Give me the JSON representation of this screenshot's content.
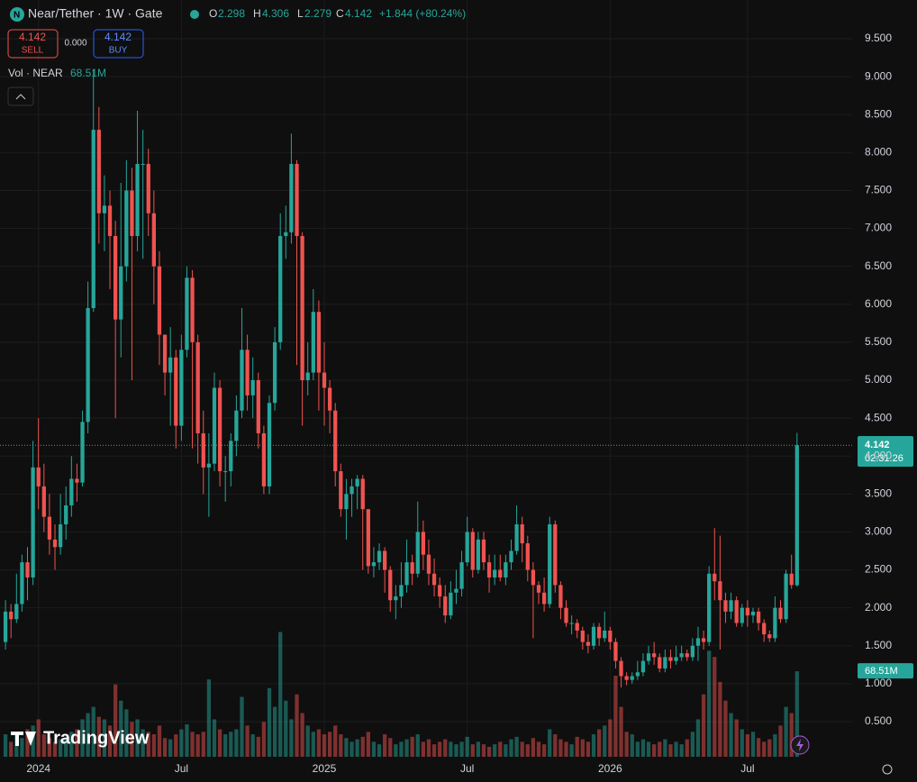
{
  "chart_data": {
    "type": "candlestick",
    "header": {
      "symbol": "Near/Tether · 1W · Gate",
      "o": "O",
      "h": "H",
      "l": "L",
      "c": "C",
      "change": "+1.844 (+80.24%)",
      "sell": "SELL",
      "buy": "BUY",
      "spread": "0.000",
      "vol_title": "Vol · NEAR",
      "volume_label": "68.51M",
      "countdown": "02:31:26",
      "brand": "TradingView"
    },
    "up_color": "#26a69a",
    "down_color": "#ef5350",
    "xlim": [
      -1,
      146
    ],
    "xticks": [
      {
        "value": 6,
        "label": "2024"
      },
      {
        "value": 32,
        "label": "Jul"
      },
      {
        "value": 58,
        "label": "2025"
      },
      {
        "value": 84,
        "label": "Jul"
      },
      {
        "value": 110,
        "label": "2026"
      },
      {
        "value": 135,
        "label": "Jul"
      }
    ],
    "ylim": [
      0.3,
      9.8
    ],
    "yticks": [
      {
        "value": 0.5,
        "label": "0.500"
      },
      {
        "value": 1,
        "label": "1.000"
      },
      {
        "value": 1.5,
        "label": "1.500"
      },
      {
        "value": 2,
        "label": "2.000"
      },
      {
        "value": 2.5,
        "label": "2.500"
      },
      {
        "value": 3,
        "label": "3.000"
      },
      {
        "value": 3.5,
        "label": "3.500"
      },
      {
        "value": 4,
        "label": "4.000"
      },
      {
        "value": 4.5,
        "label": "4.500"
      },
      {
        "value": 5,
        "label": "5.000"
      },
      {
        "value": 5.5,
        "label": "5.500"
      },
      {
        "value": 6,
        "label": "6.000"
      },
      {
        "value": 6.5,
        "label": "6.500"
      },
      {
        "value": 7,
        "label": "7.000"
      },
      {
        "value": 7.5,
        "label": "7.500"
      },
      {
        "value": 8,
        "label": "8.000"
      },
      {
        "value": 8.5,
        "label": "8.500"
      },
      {
        "value": 9,
        "label": "9.000"
      },
      {
        "value": 9.5,
        "label": "9.500"
      }
    ],
    "grid": true,
    "volume_lim": [
      0,
      200
    ],
    "open": [
      1.55,
      1.95,
      1.85,
      2.05,
      2.6,
      2.4,
      3.85,
      3.6,
      3.2,
      2.9,
      2.8,
      3.1,
      3.35,
      3.7,
      3.65,
      4.45,
      5.95,
      8.3,
      7.2,
      7.3,
      6.9,
      5.8,
      6.5,
      7.5,
      6.9,
      7.85,
      7.85,
      7.2,
      6.5,
      5.6,
      5.1,
      5.3,
      4.4,
      5.4,
      6.35,
      5.5,
      4.3,
      3.85,
      3.9,
      4.9,
      3.8,
      3.8,
      4.2,
      4.6,
      5.4,
      4.8,
      5.0,
      4.3,
      3.6,
      4.7,
      5.5,
      6.9,
      6.95,
      7.85,
      6.9,
      5.0,
      5.1,
      5.9,
      5.1,
      4.9,
      4.6,
      3.8,
      3.3,
      3.5,
      3.6,
      3.7,
      3.3,
      2.55,
      2.6,
      2.75,
      2.5,
      2.1,
      2.15,
      2.3,
      2.6,
      2.45,
      3.0,
      2.7,
      2.45,
      2.3,
      2.15,
      1.9,
      2.2,
      2.25,
      2.6,
      3.0,
      2.5,
      2.9,
      2.6,
      2.4,
      2.5,
      2.4,
      2.6,
      2.75,
      3.1,
      2.85,
      2.5,
      2.3,
      2.2,
      2.05,
      3.1,
      2.3,
      2.0,
      1.8,
      1.8,
      1.7,
      1.55,
      1.5,
      1.75,
      1.6,
      1.7,
      1.55,
      1.3,
      1.1,
      1.05,
      1.1,
      1.15,
      1.3,
      1.4,
      1.35,
      1.2,
      1.35,
      1.3,
      1.35,
      1.4,
      1.35,
      1.5,
      1.6,
      1.55,
      2.45,
      2.35,
      2.1,
      1.95,
      2.1,
      1.8,
      2.0,
      1.9,
      1.95,
      1.8,
      1.65,
      1.6,
      2.0,
      1.85,
      2.45,
      2.298
    ],
    "high": [
      2.1,
      2.05,
      2.45,
      2.7,
      2.8,
      4.2,
      4.5,
      3.9,
      3.5,
      3.1,
      3.5,
      3.6,
      4.0,
      3.9,
      4.6,
      6.3,
      9.1,
      8.6,
      7.7,
      7.5,
      7.1,
      7.6,
      7.9,
      7.8,
      8.55,
      8.3,
      8.05,
      7.5,
      6.7,
      5.6,
      5.7,
      5.4,
      5.6,
      6.5,
      6.45,
      5.6,
      4.6,
      4.3,
      5.1,
      5.0,
      4.0,
      4.3,
      4.8,
      5.95,
      5.6,
      5.3,
      5.1,
      4.4,
      4.8,
      5.7,
      7.2,
      7.3,
      8.25,
      7.9,
      6.95,
      5.5,
      6.2,
      6.05,
      5.5,
      5.0,
      4.7,
      3.9,
      3.7,
      3.7,
      3.75,
      3.75,
      3.3,
      2.8,
      2.85,
      2.8,
      2.55,
      2.3,
      2.6,
      2.9,
      2.7,
      3.4,
      3.15,
      2.9,
      2.65,
      2.4,
      2.3,
      2.35,
      2.5,
      2.75,
      3.2,
      3.05,
      3.0,
      3.0,
      2.7,
      2.7,
      2.7,
      2.7,
      2.9,
      3.35,
      3.2,
      2.95,
      2.6,
      2.35,
      2.4,
      3.2,
      3.15,
      2.35,
      2.1,
      1.9,
      1.85,
      1.75,
      1.65,
      1.8,
      1.8,
      1.95,
      1.75,
      1.6,
      1.35,
      1.15,
      1.15,
      1.3,
      1.4,
      1.5,
      1.55,
      1.4,
      1.45,
      1.45,
      1.5,
      1.5,
      1.45,
      1.6,
      1.75,
      1.7,
      2.55,
      3.05,
      2.95,
      2.2,
      2.2,
      2.15,
      2.05,
      2.1,
      2.0,
      2.0,
      1.85,
      1.7,
      2.15,
      2.1,
      2.5,
      2.7,
      4.306
    ],
    "low": [
      1.45,
      1.6,
      1.8,
      1.95,
      2.1,
      2.3,
      3.3,
      3.0,
      2.7,
      2.5,
      2.7,
      2.9,
      3.2,
      3.4,
      3.6,
      4.3,
      5.9,
      6.8,
      6.7,
      6.2,
      4.5,
      5.3,
      6.3,
      5.0,
      6.7,
      6.6,
      6.9,
      6.0,
      5.2,
      4.8,
      4.4,
      4.1,
      4.2,
      5.3,
      4.1,
      3.9,
      3.5,
      3.2,
      3.8,
      3.6,
      3.4,
      3.6,
      4.0,
      4.5,
      4.6,
      4.5,
      4.1,
      3.5,
      3.5,
      4.6,
      5.4,
      6.6,
      6.8,
      5.2,
      4.4,
      4.8,
      5.0,
      4.6,
      4.4,
      4.3,
      3.6,
      3.2,
      2.9,
      3.2,
      3.3,
      2.5,
      2.45,
      2.4,
      2.5,
      2.2,
      1.95,
      1.85,
      2.0,
      2.2,
      2.3,
      2.4,
      2.5,
      2.3,
      2.15,
      2.0,
      1.8,
      1.85,
      2.05,
      2.15,
      2.55,
      2.4,
      2.45,
      2.5,
      2.2,
      2.3,
      2.35,
      2.3,
      2.5,
      2.7,
      2.6,
      2.35,
      1.6,
      2.05,
      1.95,
      2.0,
      2.2,
      1.85,
      1.75,
      1.65,
      1.6,
      1.45,
      1.4,
      1.45,
      1.5,
      1.55,
      1.45,
      1.2,
      0.95,
      0.98,
      1.0,
      1.05,
      1.1,
      1.25,
      1.25,
      1.15,
      1.15,
      1.2,
      1.25,
      1.3,
      1.3,
      1.3,
      1.3,
      1.45,
      1.5,
      2.1,
      1.45,
      1.8,
      1.85,
      1.75,
      1.75,
      1.75,
      1.8,
      1.7,
      1.55,
      1.55,
      1.55,
      1.8,
      1.8,
      2.25,
      2.279
    ],
    "close": [
      1.95,
      1.85,
      2.05,
      2.6,
      2.4,
      3.85,
      3.6,
      3.2,
      2.9,
      2.8,
      3.1,
      3.35,
      3.7,
      3.65,
      4.45,
      5.95,
      8.3,
      7.2,
      7.3,
      6.9,
      5.8,
      6.5,
      7.5,
      6.9,
      7.85,
      7.85,
      7.2,
      6.5,
      5.6,
      5.1,
      5.3,
      4.4,
      5.4,
      6.35,
      5.5,
      4.3,
      3.85,
      3.9,
      4.9,
      3.8,
      3.8,
      4.2,
      4.6,
      5.4,
      4.8,
      5.0,
      4.3,
      3.6,
      4.7,
      5.5,
      6.9,
      6.95,
      7.85,
      6.9,
      5.0,
      5.1,
      5.9,
      5.1,
      4.9,
      4.6,
      3.8,
      3.3,
      3.5,
      3.6,
      3.7,
      3.3,
      2.55,
      2.6,
      2.75,
      2.5,
      2.1,
      2.15,
      2.3,
      2.6,
      2.45,
      3.0,
      2.7,
      2.45,
      2.3,
      2.15,
      1.9,
      2.2,
      2.25,
      2.6,
      3.0,
      2.5,
      2.9,
      2.6,
      2.4,
      2.5,
      2.4,
      2.6,
      2.75,
      3.1,
      2.85,
      2.5,
      2.3,
      2.2,
      2.05,
      3.1,
      2.3,
      2.0,
      1.8,
      1.8,
      1.7,
      1.55,
      1.5,
      1.75,
      1.6,
      1.7,
      1.55,
      1.3,
      1.1,
      1.05,
      1.1,
      1.15,
      1.3,
      1.4,
      1.35,
      1.2,
      1.35,
      1.3,
      1.35,
      1.4,
      1.35,
      1.5,
      1.6,
      1.55,
      2.45,
      2.35,
      2.1,
      1.95,
      2.1,
      1.8,
      2.0,
      1.9,
      1.95,
      1.8,
      1.65,
      1.6,
      2.0,
      1.85,
      2.45,
      2.3,
      4.142
    ],
    "volume": [
      18,
      12,
      20,
      15,
      22,
      25,
      30,
      18,
      15,
      12,
      14,
      16,
      20,
      22,
      30,
      35,
      40,
      32,
      30,
      25,
      58,
      45,
      38,
      28,
      30,
      22,
      20,
      18,
      25,
      15,
      14,
      18,
      22,
      26,
      20,
      18,
      20,
      62,
      30,
      22,
      18,
      20,
      22,
      48,
      25,
      18,
      16,
      28,
      55,
      40,
      100,
      45,
      30,
      50,
      35,
      25,
      20,
      22,
      18,
      20,
      25,
      18,
      15,
      12,
      14,
      16,
      20,
      12,
      10,
      18,
      15,
      10,
      12,
      14,
      16,
      18,
      12,
      14,
      10,
      12,
      14,
      12,
      10,
      12,
      16,
      10,
      12,
      10,
      8,
      10,
      12,
      10,
      14,
      16,
      12,
      10,
      15,
      12,
      10,
      22,
      18,
      14,
      12,
      10,
      16,
      14,
      12,
      18,
      22,
      25,
      30,
      65,
      40,
      20,
      18,
      12,
      14,
      12,
      10,
      12,
      14,
      10,
      12,
      10,
      14,
      20,
      30,
      50,
      85,
      80,
      60,
      45,
      35,
      30,
      22,
      18,
      20,
      15,
      12,
      14,
      18,
      25,
      40,
      35,
      68.51
    ]
  }
}
